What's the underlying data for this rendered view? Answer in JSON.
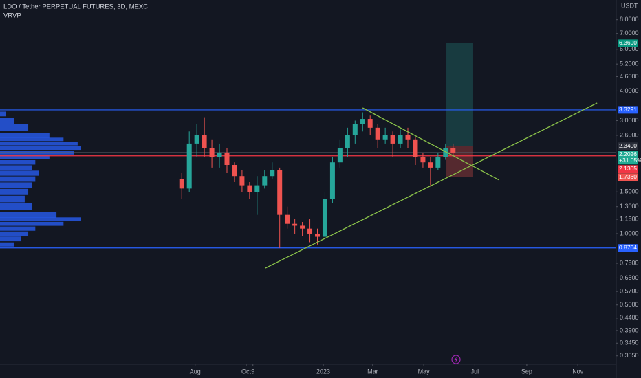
{
  "chart_data": {
    "type": "candlestick",
    "title": "LDO / Tether PERPETUAL FUTURES, 3D, MEXC",
    "indicator": "VRVP",
    "currency": "USDT",
    "log_scale": true,
    "grid": false,
    "up_color": "#26a69a",
    "down_color": "#ef5350",
    "xlim": [
      -202,
      533
    ],
    "xticks": [
      {
        "value": 31,
        "label": "Aug"
      },
      {
        "value": 92,
        "label": "Oct"
      },
      {
        "value": 100,
        "label": "9"
      },
      {
        "value": 184,
        "label": "2023"
      },
      {
        "value": 243,
        "label": "Mar"
      },
      {
        "value": 304,
        "label": "May"
      },
      {
        "value": 365,
        "label": "Jul"
      },
      {
        "value": 427,
        "label": "Sep"
      },
      {
        "value": 488,
        "label": "Nov"
      }
    ],
    "ylim": [
      0.281,
      9.69
    ],
    "yticks": [
      {
        "value": 8,
        "label": "8.0000"
      },
      {
        "value": 7,
        "label": "7.0000"
      },
      {
        "value": 6,
        "label": "6.0000"
      },
      {
        "value": 5.2,
        "label": "5.2000"
      },
      {
        "value": 4.6,
        "label": "4.6000"
      },
      {
        "value": 4,
        "label": "4.0000"
      },
      {
        "value": 3,
        "label": "3.0000"
      },
      {
        "value": 2.6,
        "label": "2.6000"
      },
      {
        "value": 1.5,
        "label": "1.5000"
      },
      {
        "value": 1.3,
        "label": "1.3000"
      },
      {
        "value": 1.15,
        "label": "1.1500"
      },
      {
        "value": 1,
        "label": "1.0000"
      },
      {
        "value": 0.75,
        "label": "0.7500"
      },
      {
        "value": 0.65,
        "label": "0.6500"
      },
      {
        "value": 0.57,
        "label": "0.5700"
      },
      {
        "value": 0.5,
        "label": "0.5000"
      },
      {
        "value": 0.44,
        "label": "0.4400"
      },
      {
        "value": 0.39,
        "label": "0.3900"
      },
      {
        "value": 0.345,
        "label": "0.3450"
      },
      {
        "value": 0.305,
        "label": "0.3050"
      }
    ],
    "x": [
      15,
      24,
      33,
      42,
      51,
      60,
      69,
      78,
      87,
      96,
      105,
      114,
      123,
      132,
      141,
      150,
      159,
      168,
      177,
      186,
      195,
      204,
      213,
      222,
      231,
      240,
      249,
      258,
      267,
      276,
      285,
      294,
      303,
      312,
      321,
      330,
      339
    ],
    "open": [
      1.7,
      1.55,
      2.4,
      2.6,
      2.3,
      2.1,
      2.2,
      1.95,
      1.75,
      1.6,
      1.5,
      1.6,
      1.75,
      1.85,
      1.2,
      1.1,
      1.08,
      1.05,
      1.0,
      0.97,
      1.4,
      2.0,
      2.3,
      2.6,
      2.9,
      3.05,
      2.8,
      2.5,
      2.6,
      2.4,
      2.6,
      2.5,
      2.1,
      2.0,
      1.9,
      2.1,
      2.3
    ],
    "high": [
      1.8,
      2.7,
      2.9,
      3.1,
      2.5,
      2.4,
      2.3,
      2.0,
      1.85,
      1.65,
      1.75,
      1.85,
      2.0,
      1.9,
      1.3,
      1.15,
      1.12,
      1.15,
      1.05,
      1.5,
      2.1,
      2.5,
      2.8,
      3.0,
      3.25,
      3.15,
      2.9,
      2.8,
      2.7,
      2.75,
      2.8,
      2.55,
      2.2,
      2.1,
      2.2,
      2.4,
      2.4
    ],
    "low": [
      1.4,
      1.5,
      2.1,
      2.1,
      1.9,
      1.9,
      1.8,
      1.65,
      1.5,
      1.4,
      1.2,
      1.55,
      1.7,
      0.87,
      1.05,
      1.0,
      0.98,
      0.92,
      0.9,
      0.95,
      1.35,
      1.9,
      2.1,
      2.4,
      2.7,
      2.6,
      2.3,
      2.4,
      2.1,
      2.3,
      2.3,
      1.95,
      1.9,
      1.6,
      1.85,
      2.05,
      2.15
    ],
    "close": [
      1.55,
      2.4,
      2.6,
      2.3,
      2.1,
      2.2,
      1.95,
      1.75,
      1.6,
      1.5,
      1.6,
      1.75,
      1.85,
      1.2,
      1.1,
      1.08,
      1.05,
      1.0,
      0.97,
      1.4,
      2.0,
      2.3,
      2.6,
      2.9,
      3.05,
      2.8,
      2.5,
      2.6,
      2.4,
      2.6,
      2.5,
      2.1,
      2.0,
      1.9,
      2.1,
      2.3,
      2.2
    ],
    "levels": [
      {
        "value": 3.3291,
        "label": "3.3291",
        "color": "#2962ff"
      },
      {
        "value": 0.8704,
        "label": "0.8704",
        "color": "#2962ff"
      }
    ],
    "price_line": {
      "value": 2.1305,
      "label": "2.1305",
      "color": "#f23645"
    },
    "last_price": {
      "value": 2.2026,
      "label": "2.2026",
      "change": "+31.05%",
      "color": "#22ab94"
    },
    "position": {
      "entry": 2.34,
      "entry_label": "2.3400",
      "target": 6.369,
      "target_label": "6.3690",
      "stop": 1.736,
      "stop_label": "1.7360",
      "x": [
        331,
        363
      ]
    },
    "trendlines": [
      {
        "x": [
          115,
          511
        ],
        "y": [
          0.716,
          3.56
        ],
        "color": "#8bc34a"
      },
      {
        "x": [
          231,
          394
        ],
        "y": [
          3.395,
          1.684
        ],
        "color": "#8bc34a"
      }
    ],
    "volume_profile": {
      "color": "#2962ff",
      "prices": [
        3.2,
        3.0,
        2.8,
        2.6,
        2.5,
        2.4,
        2.3,
        2.2,
        2.1,
        2.0,
        1.9,
        1.8,
        1.7,
        1.6,
        1.5,
        1.4,
        1.3,
        1.2,
        1.15,
        1.1,
        1.05,
        1.0,
        0.95,
        0.9
      ],
      "volumes": [
        8,
        20,
        40,
        70,
        90,
        110,
        115,
        105,
        70,
        50,
        45,
        55,
        50,
        45,
        40,
        35,
        45,
        80,
        115,
        90,
        50,
        40,
        30,
        20
      ]
    }
  }
}
